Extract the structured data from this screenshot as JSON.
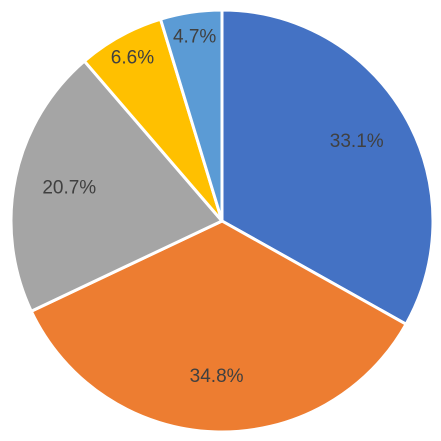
{
  "chart_data": {
    "type": "pie",
    "values": [
      33.1,
      34.8,
      20.7,
      6.6,
      4.7
    ],
    "value_labels": [
      "33.1%",
      "34.8%",
      "20.7%",
      "6.6%",
      "4.7%"
    ],
    "colors": [
      "#4472c4",
      "#ed7d31",
      "#a5a5a5",
      "#ffc000",
      "#5b9bd5"
    ]
  }
}
